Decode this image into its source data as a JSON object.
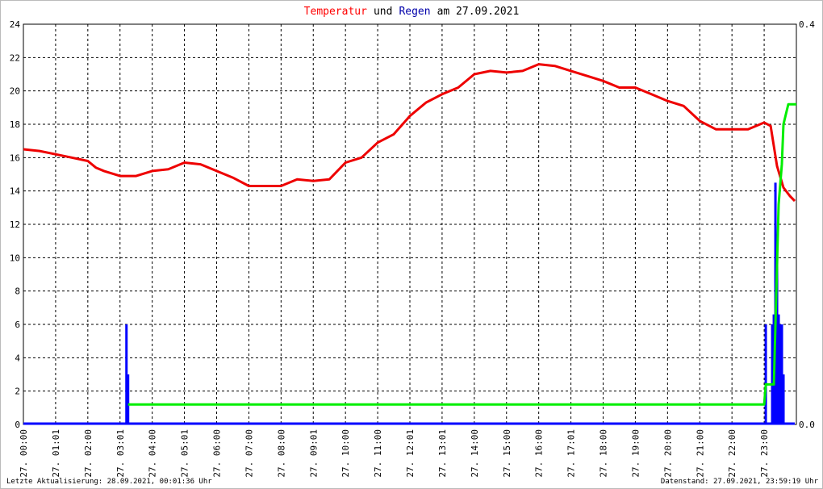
{
  "chart_data": {
    "type": "line",
    "title": [
      "Temperatur",
      "und",
      "Regen",
      "am 27.09.2021"
    ],
    "title_colors": [
      "#ff0000",
      "#000000",
      "#0000aa",
      "#000000"
    ],
    "xlim": [
      0,
      24
    ],
    "xticks": [
      {
        "value": 0,
        "label": "27. 00:00"
      },
      {
        "value": 1,
        "label": "27. 01:01"
      },
      {
        "value": 2,
        "label": "27. 02:00"
      },
      {
        "value": 3,
        "label": "27. 03:01"
      },
      {
        "value": 4,
        "label": "27. 04:00"
      },
      {
        "value": 5,
        "label": "27. 05:01"
      },
      {
        "value": 6,
        "label": "27. 06:00"
      },
      {
        "value": 7,
        "label": "27. 07:00"
      },
      {
        "value": 8,
        "label": "27. 08:00"
      },
      {
        "value": 9,
        "label": "27. 09:01"
      },
      {
        "value": 10,
        "label": "27. 10:00"
      },
      {
        "value": 11,
        "label": "27. 11:00"
      },
      {
        "value": 12,
        "label": "27. 12:01"
      },
      {
        "value": 13,
        "label": "27. 13:01"
      },
      {
        "value": 14,
        "label": "27. 14:00"
      },
      {
        "value": 15,
        "label": "27. 15:00"
      },
      {
        "value": 16,
        "label": "27. 16:00"
      },
      {
        "value": 17,
        "label": "27. 17:01"
      },
      {
        "value": 18,
        "label": "27. 18:00"
      },
      {
        "value": 19,
        "label": "27. 19:00"
      },
      {
        "value": 20,
        "label": "27. 20:00"
      },
      {
        "value": 21,
        "label": "27. 21:00"
      },
      {
        "value": 22,
        "label": "27. 22:00"
      },
      {
        "value": 23,
        "label": "27. 23:00"
      }
    ],
    "ylim": [
      0,
      24
    ],
    "yticks": [
      0,
      2,
      4,
      6,
      8,
      10,
      12,
      14,
      16,
      18,
      20,
      22,
      24
    ],
    "y2lim": [
      0,
      0.4
    ],
    "y2ticks": [
      {
        "value": 0,
        "label": "0.0"
      },
      {
        "value": 0.4,
        "label": "0.4"
      }
    ],
    "grid": true,
    "series": [
      {
        "color": "#ee0000",
        "style": "line",
        "x": [
          0,
          0.5,
          1,
          1.5,
          2,
          2.25,
          2.5,
          3,
          3.5,
          4,
          4.5,
          5,
          5.5,
          6,
          6.5,
          7,
          7.5,
          8,
          8.5,
          9,
          9.5,
          10,
          10.5,
          11,
          11.5,
          12,
          12.5,
          13,
          13.5,
          14,
          14.5,
          15,
          15.5,
          16,
          16.5,
          17,
          17.5,
          18,
          18.5,
          19,
          19.5,
          20,
          20.5,
          21,
          21.5,
          22,
          22.5,
          23,
          23.2,
          23.4,
          23.6,
          23.8,
          23.95
        ],
        "values": [
          16.5,
          16.4,
          16.2,
          16.0,
          15.8,
          15.4,
          15.2,
          14.9,
          14.9,
          15.2,
          15.3,
          15.7,
          15.6,
          15.2,
          14.8,
          14.3,
          14.3,
          14.3,
          14.7,
          14.6,
          14.7,
          15.7,
          16.0,
          16.9,
          17.4,
          18.5,
          19.3,
          19.8,
          20.2,
          21.0,
          21.2,
          21.1,
          21.2,
          21.6,
          21.5,
          21.2,
          20.9,
          20.6,
          20.2,
          20.2,
          19.8,
          19.4,
          19.1,
          18.2,
          17.7,
          17.7,
          17.7,
          18.1,
          17.9,
          15.5,
          14.2,
          13.7,
          13.4
        ]
      },
      {
        "color": "#0000ff",
        "style": "impulse",
        "x": [
          3.2,
          3.25,
          23.05,
          23.25,
          23.3,
          23.35,
          23.4,
          23.45,
          23.5,
          23.55,
          23.6
        ],
        "values": [
          6,
          3,
          6,
          6,
          6.6,
          14.5,
          10.5,
          6.6,
          6,
          6,
          3
        ]
      },
      {
        "color": "#00ee00",
        "style": "line",
        "axis": "y2",
        "x": [
          3.25,
          23.0,
          23.05,
          23.3,
          23.45,
          23.55,
          23.6,
          23.75,
          24
        ],
        "values": [
          0.02,
          0.02,
          0.04,
          0.04,
          0.22,
          0.26,
          0.3,
          0.32,
          0.32
        ]
      }
    ],
    "footer_left": "Letzte Aktualisierung: 28.09.2021, 00:01:36 Uhr",
    "footer_right": "Datenstand: 27.09.2021, 23:59:19 Uhr"
  }
}
